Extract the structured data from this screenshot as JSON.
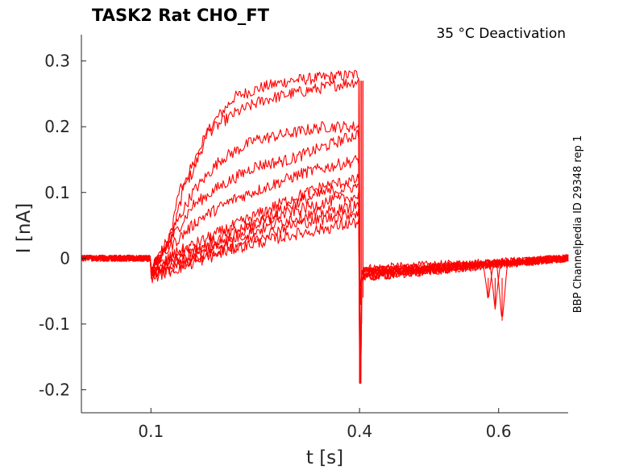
{
  "chart_data": {
    "type": "line",
    "title": "TASK2  Rat  CHO_FT",
    "annotation": "35 °C  Deactivation",
    "side_note": "BBP Channelpedia ID 29348 rep 1",
    "xlabel": "t [s]",
    "ylabel": "I [nA]",
    "xlim": [
      0.0,
      0.7
    ],
    "ylim": [
      -0.235,
      0.34
    ],
    "xticks": [
      {
        "value": 0.1,
        "label": "0.1"
      },
      {
        "value": 0.4,
        "label": "0.4"
      },
      {
        "value": 0.6,
        "label": "0.6"
      }
    ],
    "yticks": [
      {
        "value": 0.3,
        "label": "0.3"
      },
      {
        "value": 0.2,
        "label": "0.2"
      },
      {
        "value": 0.1,
        "label": "0.1"
      },
      {
        "value": 0.0,
        "label": "0"
      },
      {
        "value": -0.1,
        "label": "-0.1"
      },
      {
        "value": -0.2,
        "label": "-0.2"
      }
    ],
    "grid": false,
    "series_color": "#ff0000",
    "segments": {
      "baseline_end": 0.1,
      "pulse_end": 0.4,
      "pulse_pad": 0.003
    },
    "series": [
      {
        "pulse": [
          [
            0.1,
            -0.02
          ],
          [
            0.125,
            0.02
          ],
          [
            0.14,
            0.1
          ],
          [
            0.16,
            0.13
          ],
          [
            0.185,
            0.2
          ],
          [
            0.22,
            0.245
          ],
          [
            0.26,
            0.26
          ],
          [
            0.3,
            0.27
          ],
          [
            0.35,
            0.275
          ],
          [
            0.4,
            0.28
          ]
        ],
        "tail": -0.015
      },
      {
        "pulse": [
          [
            0.1,
            -0.015
          ],
          [
            0.13,
            0.03
          ],
          [
            0.15,
            0.12
          ],
          [
            0.18,
            0.19
          ],
          [
            0.22,
            0.22
          ],
          [
            0.26,
            0.24
          ],
          [
            0.3,
            0.25
          ],
          [
            0.35,
            0.26
          ],
          [
            0.4,
            0.27
          ]
        ],
        "tail": -0.02
      },
      {
        "pulse": [
          [
            0.1,
            -0.02
          ],
          [
            0.13,
            0.04
          ],
          [
            0.16,
            0.1
          ],
          [
            0.2,
            0.15
          ],
          [
            0.25,
            0.18
          ],
          [
            0.3,
            0.19
          ],
          [
            0.35,
            0.2
          ],
          [
            0.4,
            0.2
          ]
        ],
        "tail": -0.025
      },
      {
        "pulse": [
          [
            0.1,
            -0.02
          ],
          [
            0.13,
            0.03
          ],
          [
            0.16,
            0.08
          ],
          [
            0.2,
            0.11
          ],
          [
            0.25,
            0.14
          ],
          [
            0.3,
            0.15
          ],
          [
            0.35,
            0.17
          ],
          [
            0.4,
            0.19
          ]
        ],
        "tail": -0.02
      },
      {
        "pulse": [
          [
            0.1,
            -0.015
          ],
          [
            0.13,
            0.02
          ],
          [
            0.17,
            0.06
          ],
          [
            0.22,
            0.09
          ],
          [
            0.27,
            0.11
          ],
          [
            0.32,
            0.13
          ],
          [
            0.36,
            0.14
          ],
          [
            0.4,
            0.15
          ]
        ],
        "tail": -0.03
      },
      {
        "pulse": [
          [
            0.1,
            -0.02
          ],
          [
            0.14,
            0.01
          ],
          [
            0.18,
            0.03
          ],
          [
            0.22,
            0.05
          ],
          [
            0.26,
            0.07
          ],
          [
            0.3,
            0.09
          ],
          [
            0.35,
            0.11
          ],
          [
            0.4,
            0.12
          ]
        ],
        "tail": -0.02
      },
      {
        "pulse": [
          [
            0.1,
            -0.02
          ],
          [
            0.14,
            0.01
          ],
          [
            0.18,
            0.02
          ],
          [
            0.22,
            0.04
          ],
          [
            0.26,
            0.06
          ],
          [
            0.3,
            0.08
          ],
          [
            0.35,
            0.1
          ],
          [
            0.4,
            0.11
          ]
        ],
        "tail": -0.025
      },
      {
        "pulse": [
          [
            0.1,
            -0.025
          ],
          [
            0.14,
            0.0
          ],
          [
            0.18,
            0.015
          ],
          [
            0.22,
            0.035
          ],
          [
            0.26,
            0.055
          ],
          [
            0.3,
            0.07
          ],
          [
            0.35,
            0.085
          ],
          [
            0.4,
            0.095
          ]
        ],
        "tail": -0.03
      },
      {
        "pulse": [
          [
            0.1,
            -0.02
          ],
          [
            0.14,
            -0.005
          ],
          [
            0.18,
            0.01
          ],
          [
            0.22,
            0.03
          ],
          [
            0.26,
            0.045
          ],
          [
            0.3,
            0.06
          ],
          [
            0.35,
            0.07
          ],
          [
            0.4,
            0.08
          ]
        ],
        "tail": -0.03
      },
      {
        "pulse": [
          [
            0.1,
            -0.025
          ],
          [
            0.14,
            -0.01
          ],
          [
            0.18,
            0.005
          ],
          [
            0.22,
            0.02
          ],
          [
            0.26,
            0.035
          ],
          [
            0.3,
            0.05
          ],
          [
            0.35,
            0.06
          ],
          [
            0.4,
            0.07
          ]
        ],
        "tail": -0.025
      },
      {
        "pulse": [
          [
            0.1,
            -0.03
          ],
          [
            0.14,
            -0.015
          ],
          [
            0.18,
            0.0
          ],
          [
            0.22,
            0.015
          ],
          [
            0.26,
            0.025
          ],
          [
            0.3,
            0.035
          ],
          [
            0.35,
            0.045
          ],
          [
            0.4,
            0.055
          ]
        ],
        "tail": -0.02
      }
    ],
    "spikes": [
      {
        "x": 0.401,
        "y": -0.19
      },
      {
        "x": 0.403,
        "y": -0.1
      },
      {
        "x": 0.405,
        "y": -0.06
      }
    ],
    "dips": [
      {
        "x": 0.595,
        "y": -0.075
      },
      {
        "x": 0.605,
        "y": -0.095
      },
      {
        "x": 0.585,
        "y": -0.06
      }
    ]
  }
}
